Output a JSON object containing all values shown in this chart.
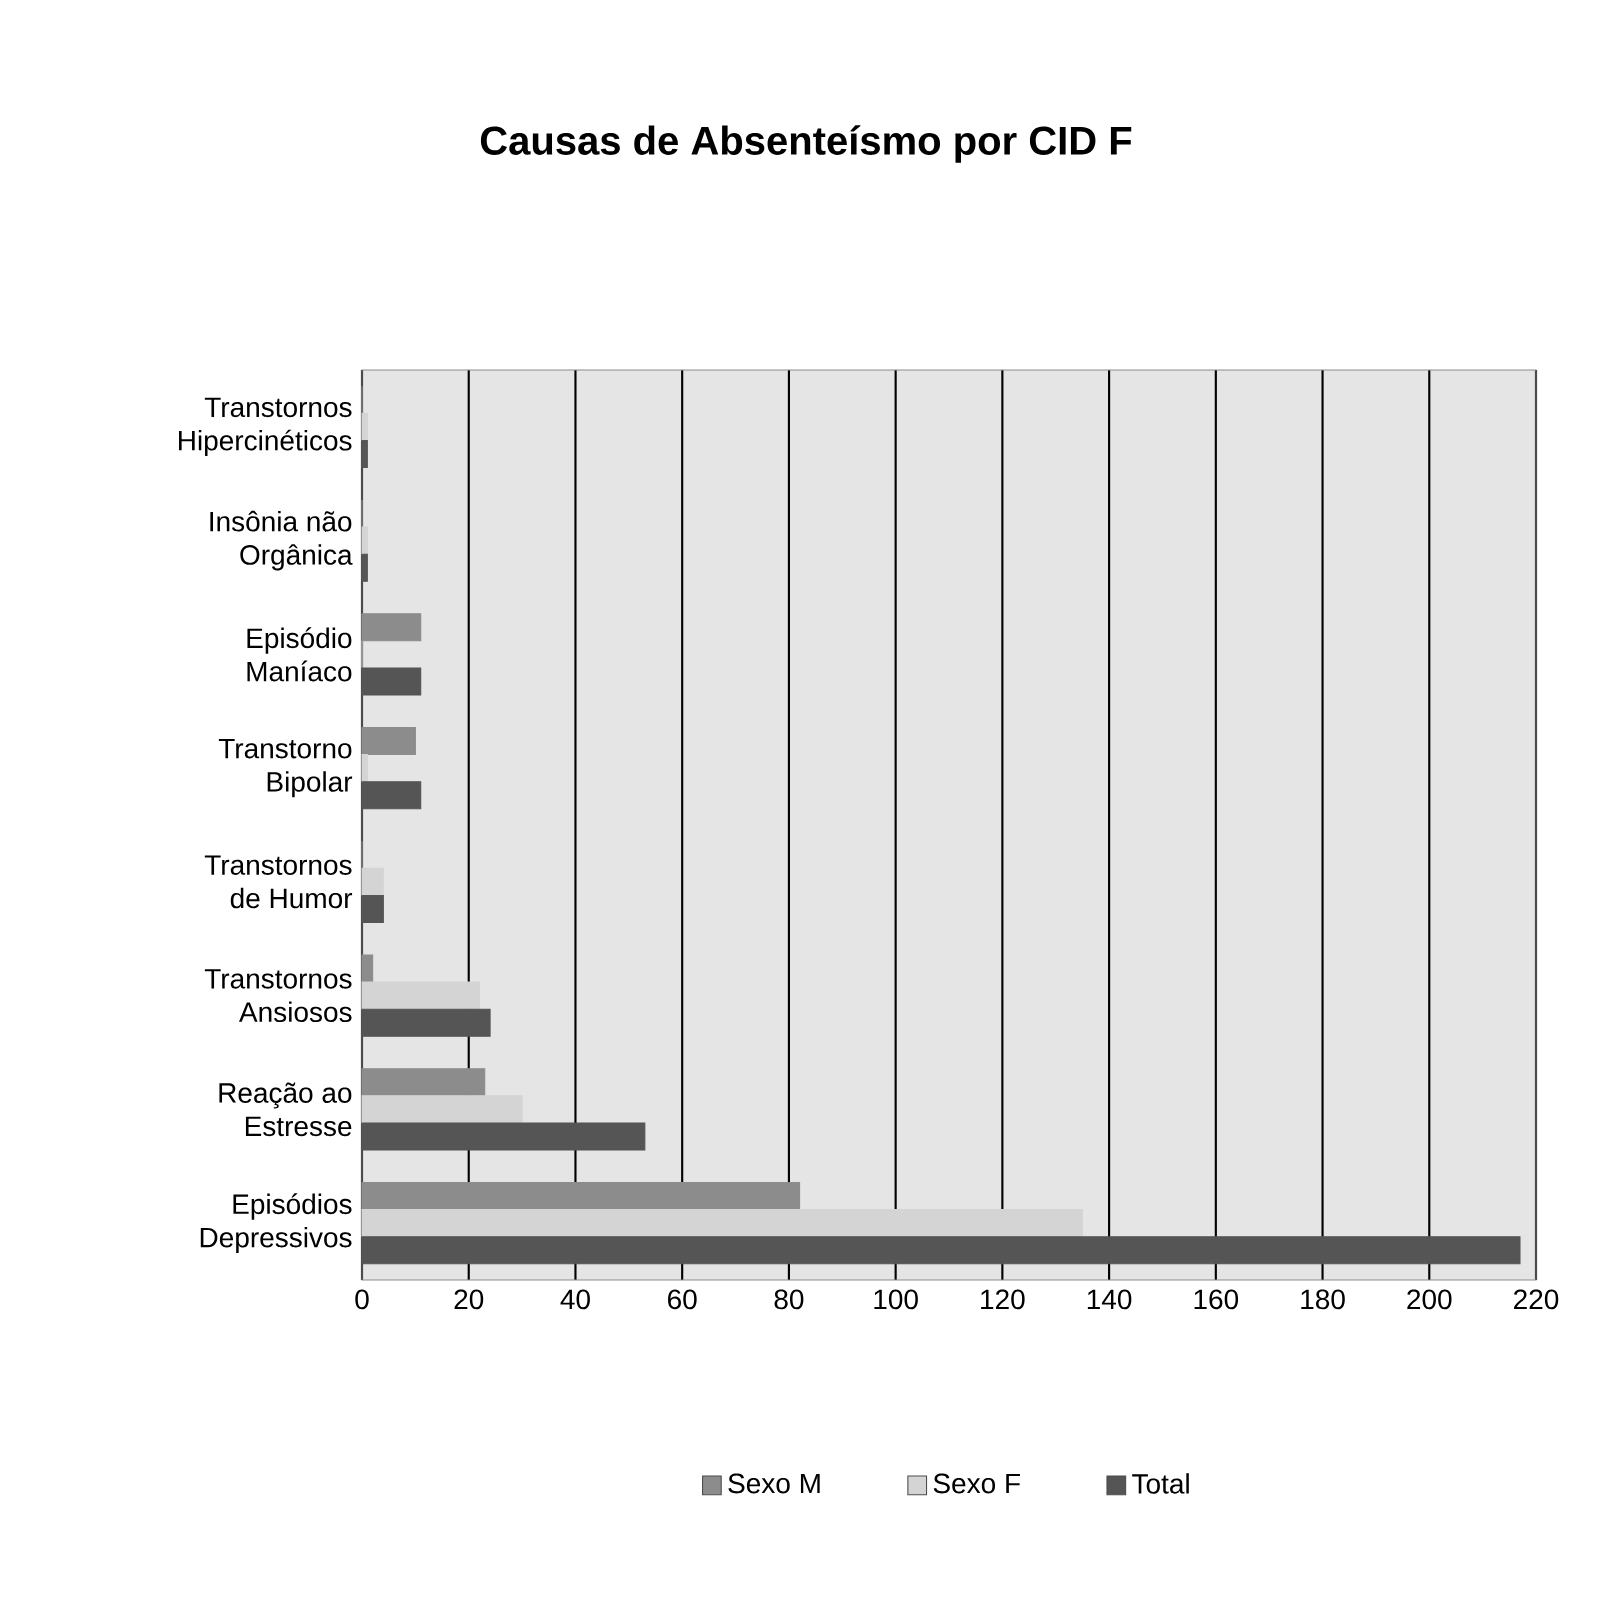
{
  "chart_data": {
    "type": "bar",
    "orientation": "horizontal",
    "title": "Causas de Absenteísmo por CID F",
    "categories": [
      "Transtornos Hipercinéticos",
      "Insônia não Orgânica",
      "Episódio Maníaco",
      "Transtorno Bipolar",
      "Transtornos de Humor",
      "Transtornos Ansiosos",
      "Reação ao Estresse",
      "Episódios Depressivos"
    ],
    "series": [
      {
        "name": "Sexo M",
        "color": "#8c8c8c",
        "values": [
          0,
          0,
          11,
          10,
          0,
          2,
          23,
          82
        ]
      },
      {
        "name": "Sexo F",
        "color": "#d4d4d4",
        "values": [
          1,
          1,
          0,
          1,
          4,
          22,
          30,
          135
        ]
      },
      {
        "name": "Total",
        "color": "#555555",
        "values": [
          1,
          1,
          11,
          11,
          4,
          24,
          53,
          217
        ]
      }
    ],
    "xlim": [
      0,
      220
    ],
    "xticks": [
      0,
      20,
      40,
      60,
      80,
      100,
      120,
      140,
      160,
      180,
      200,
      220
    ],
    "grid": "x",
    "legend": "bottom"
  }
}
